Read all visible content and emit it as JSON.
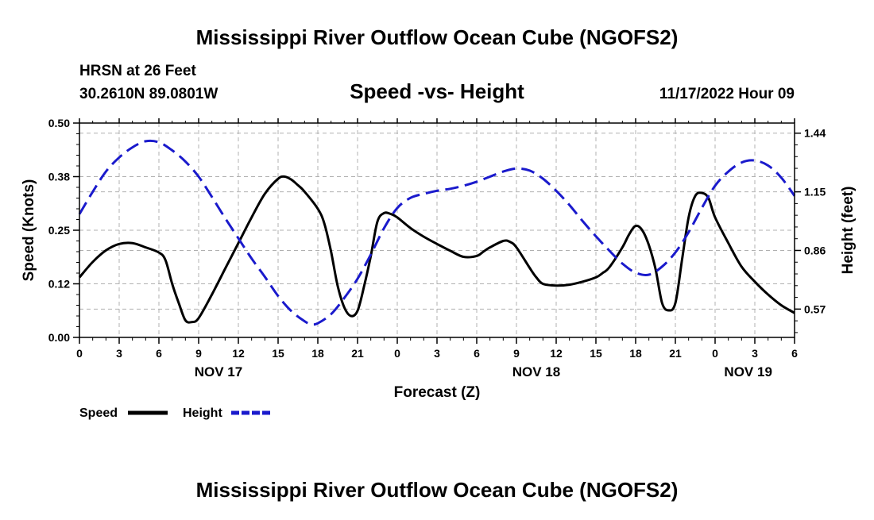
{
  "title": "Mississippi River Outflow Ocean Cube (NGOFS2)",
  "footer_title": "Mississippi River Outflow Ocean Cube (NGOFS2)",
  "station": "HRSN at 26 Feet",
  "coords": "30.2610N  89.0801W",
  "datetime": "11/17/2022 Hour 09",
  "colors": {
    "speed": "#000000",
    "height": "#1a1acc",
    "grid": "#b0b0b0"
  },
  "chart_data": {
    "type": "line",
    "title": "Speed -vs- Height",
    "xlabel": "Forecast (Z)",
    "ylabel_left": "Speed (Knots)",
    "ylabel_right": "Height (feet)",
    "xlim": [
      0,
      54
    ],
    "ylim_left": [
      0,
      0.5
    ],
    "ylim_right": [
      0.43,
      1.49
    ],
    "x_ticks": [
      0,
      3,
      6,
      9,
      12,
      15,
      18,
      21,
      24,
      27,
      30,
      33,
      36,
      39,
      42,
      45,
      48,
      51,
      54
    ],
    "x_tick_labels": [
      "0",
      "3",
      "6",
      "9",
      "12",
      "15",
      "18",
      "21",
      "0",
      "3",
      "6",
      "9",
      "12",
      "15",
      "18",
      "21",
      "0",
      "3",
      "6"
    ],
    "left_ticks": [
      0.0,
      0.125,
      0.25,
      0.375,
      0.5
    ],
    "left_tick_labels": [
      "0.00",
      "0.12",
      "0.25",
      "0.38",
      "0.50"
    ],
    "right_ticks": [
      0.57,
      0.86,
      1.15,
      1.44
    ],
    "right_tick_labels": [
      "0.57",
      "0.86",
      "1.15",
      "1.44"
    ],
    "day_labels": [
      {
        "x": 10.5,
        "label": "NOV 17"
      },
      {
        "x": 34.5,
        "label": "NOV 18"
      },
      {
        "x": 50.5,
        "label": "NOV 19"
      }
    ],
    "legend": [
      "Speed",
      "Height"
    ],
    "series": [
      {
        "name": "Speed",
        "axis": "left",
        "x": [
          0,
          1,
          2,
          3,
          4,
          5,
          6,
          6.5,
          7,
          7.5,
          8,
          8.5,
          9,
          10,
          11,
          12,
          13,
          14,
          15,
          15.5,
          16,
          16.5,
          17,
          18,
          18.5,
          19,
          19.5,
          20,
          20.5,
          21,
          21.5,
          22,
          22.5,
          23,
          23.5,
          24,
          25,
          26,
          27,
          28,
          29,
          30,
          30.5,
          31,
          32,
          32.5,
          33,
          34,
          34.5,
          35,
          36,
          37,
          38,
          39,
          39.5,
          40,
          41,
          41.5,
          42,
          42.5,
          43,
          43.5,
          44,
          44.5,
          45,
          45.5,
          46,
          46.5,
          47,
          47.5,
          48,
          49,
          50,
          51,
          52,
          53,
          54
        ],
        "values": [
          0.14,
          0.176,
          0.203,
          0.218,
          0.22,
          0.21,
          0.198,
          0.18,
          0.125,
          0.08,
          0.04,
          0.036,
          0.045,
          0.1,
          0.16,
          0.22,
          0.28,
          0.335,
          0.37,
          0.375,
          0.368,
          0.355,
          0.34,
          0.3,
          0.265,
          0.2,
          0.12,
          0.07,
          0.05,
          0.062,
          0.12,
          0.19,
          0.27,
          0.29,
          0.288,
          0.28,
          0.255,
          0.235,
          0.218,
          0.202,
          0.188,
          0.19,
          0.2,
          0.21,
          0.225,
          0.223,
          0.21,
          0.162,
          0.14,
          0.125,
          0.121,
          0.123,
          0.13,
          0.14,
          0.15,
          0.163,
          0.21,
          0.24,
          0.26,
          0.25,
          0.215,
          0.16,
          0.08,
          0.063,
          0.08,
          0.18,
          0.28,
          0.33,
          0.337,
          0.325,
          0.28,
          0.22,
          0.165,
          0.13,
          0.1,
          0.075,
          0.057
        ]
      },
      {
        "name": "Height",
        "axis": "right",
        "x": [
          0,
          1,
          2,
          3,
          4,
          5,
          6,
          7,
          8,
          9,
          10,
          11,
          12,
          13,
          14,
          15,
          16,
          17,
          17.5,
          18,
          19,
          20,
          21,
          22,
          23,
          24,
          25,
          26,
          27,
          28,
          29,
          30,
          31,
          32,
          33,
          34,
          35,
          36,
          37,
          38,
          39,
          40,
          41,
          42,
          43,
          44,
          45,
          46,
          47,
          48,
          49,
          50,
          51,
          52,
          53,
          54
        ],
        "values": [
          1.04,
          1.15,
          1.25,
          1.32,
          1.37,
          1.4,
          1.395,
          1.355,
          1.3,
          1.225,
          1.125,
          1.02,
          0.92,
          0.82,
          0.73,
          0.635,
          0.56,
          0.51,
          0.495,
          0.5,
          0.545,
          0.625,
          0.72,
          0.84,
          0.97,
          1.07,
          1.12,
          1.14,
          1.155,
          1.165,
          1.18,
          1.2,
          1.225,
          1.25,
          1.265,
          1.255,
          1.215,
          1.155,
          1.085,
          1.005,
          0.93,
          0.86,
          0.795,
          0.75,
          0.74,
          0.78,
          0.85,
          0.95,
          1.07,
          1.18,
          1.25,
          1.295,
          1.305,
          1.28,
          1.22,
          1.13
        ]
      }
    ]
  }
}
